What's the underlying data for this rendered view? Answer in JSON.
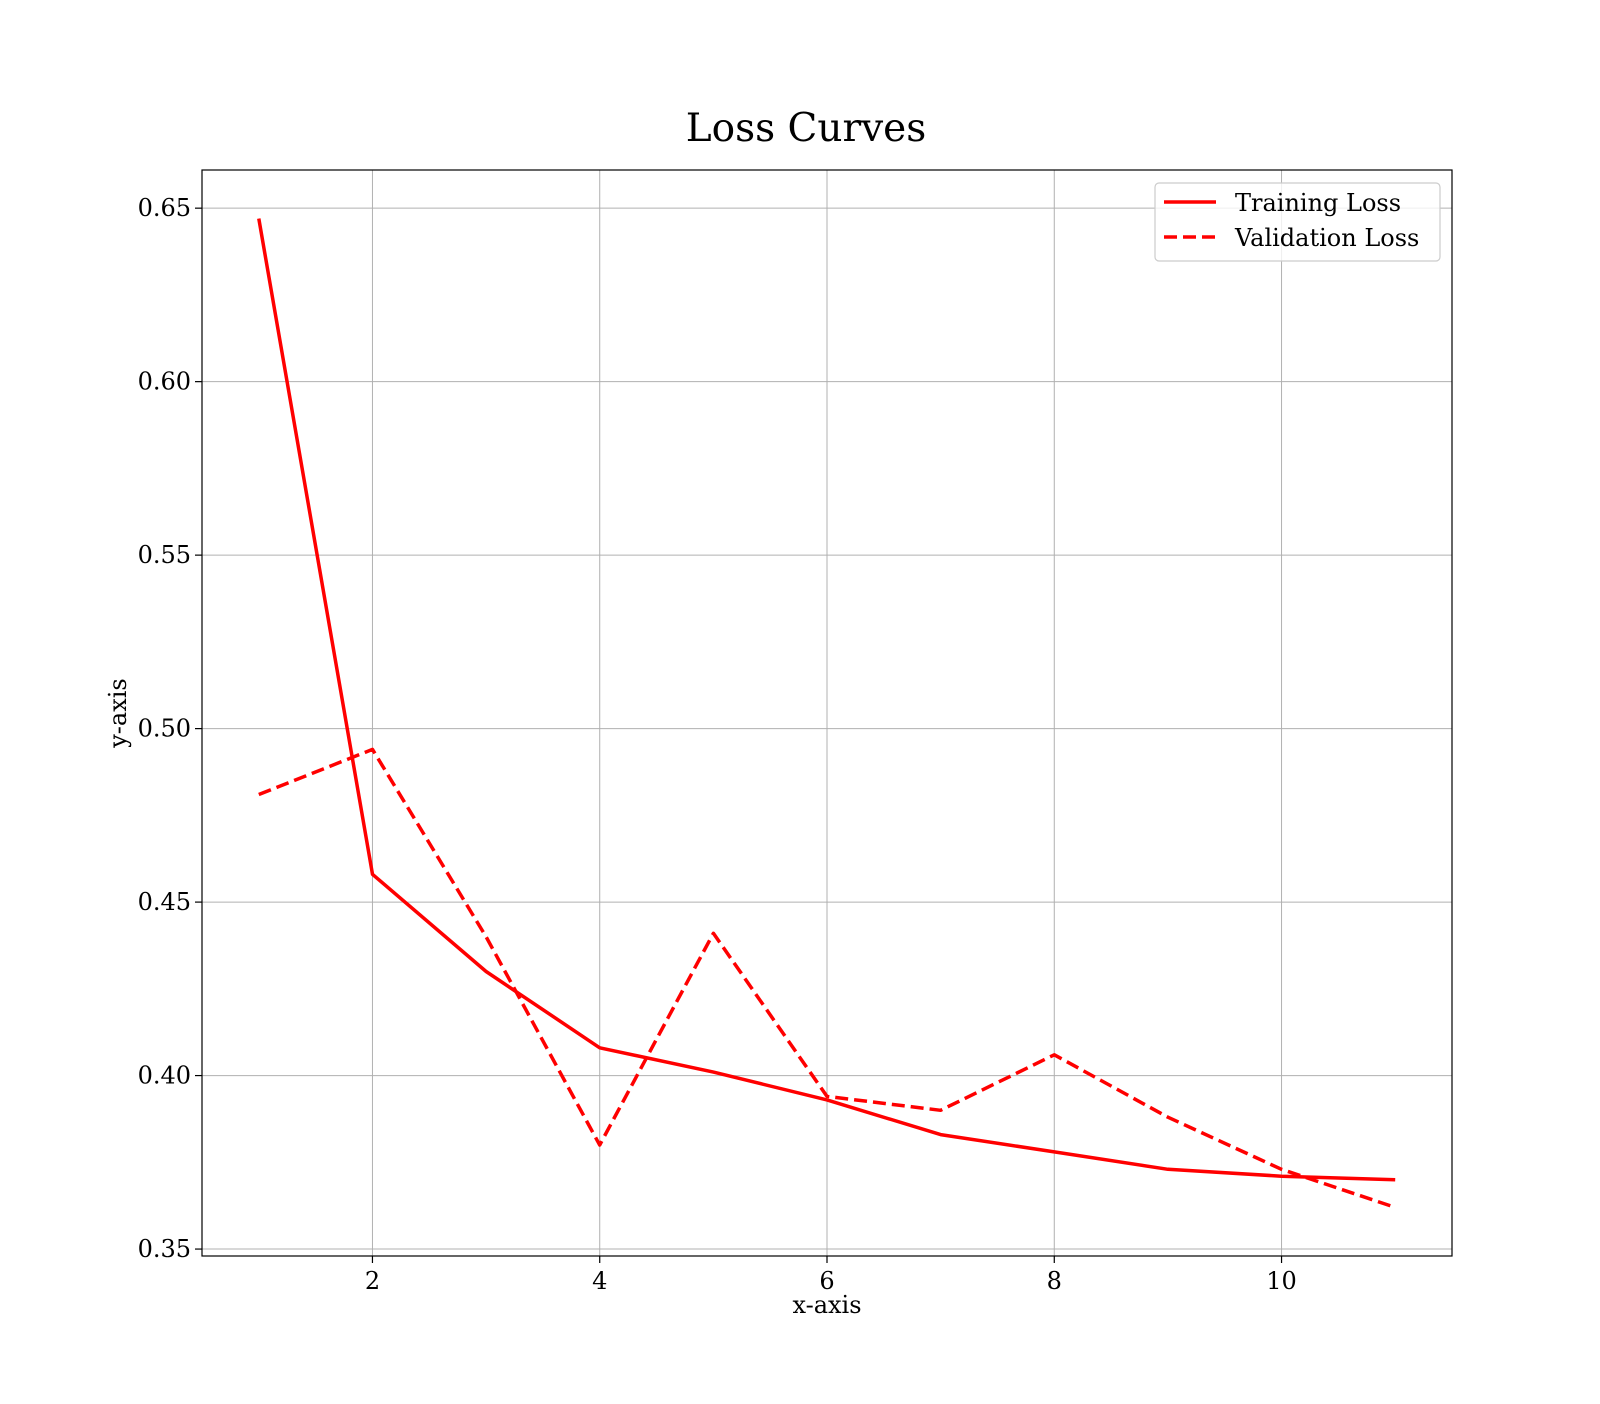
{
  "chart_data": {
    "type": "line",
    "title": "Loss Curves",
    "xlabel": "x-axis",
    "ylabel": "y-axis",
    "xlim": [
      0.5,
      11.5
    ],
    "ylim": [
      0.348,
      0.661
    ],
    "x_ticks": [
      2,
      4,
      6,
      8,
      10
    ],
    "y_ticks": [
      0.35,
      0.4,
      0.45,
      0.5,
      0.55,
      0.6,
      0.65
    ],
    "x_tick_labels": [
      "2",
      "4",
      "6",
      "8",
      "10"
    ],
    "y_tick_labels": [
      "0.35",
      "0.40",
      "0.45",
      "0.50",
      "0.55",
      "0.60",
      "0.65"
    ],
    "grid": true,
    "legend_position": "top-right",
    "x": [
      1,
      2,
      3,
      4,
      5,
      6,
      7,
      8,
      9,
      10,
      11
    ],
    "series": [
      {
        "name": "Training Loss",
        "style": "solid",
        "color": "#ff0000",
        "values": [
          0.647,
          0.458,
          0.43,
          0.408,
          0.401,
          0.393,
          0.383,
          0.378,
          0.373,
          0.371,
          0.37
        ]
      },
      {
        "name": "Validation Loss",
        "style": "dashed",
        "color": "#ff0000",
        "values": [
          0.481,
          0.494,
          0.44,
          0.38,
          0.441,
          0.394,
          0.39,
          0.406,
          0.388,
          0.373,
          0.362
        ]
      }
    ]
  }
}
